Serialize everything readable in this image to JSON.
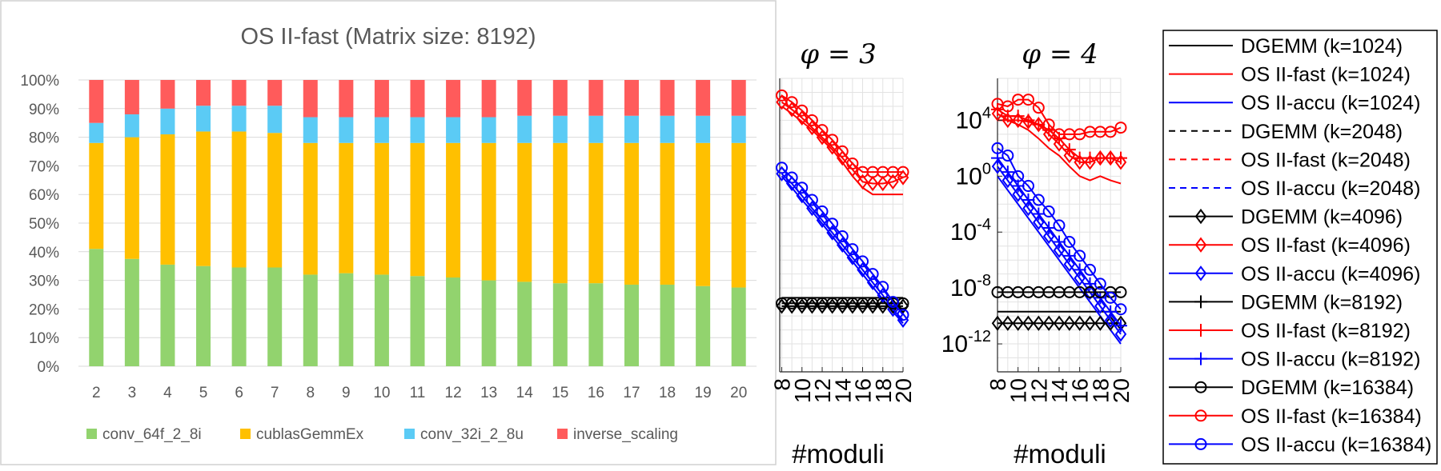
{
  "colors": {
    "conv64": "#92d36e",
    "cublas": "#ffc000",
    "conv32": "#5bcbf5",
    "inv": "#ff5b5b",
    "dgemm": "#000000",
    "fast": "#ff0000",
    "accu": "#0000ff"
  },
  "chart_data": [
    {
      "type": "bar",
      "stacked": true,
      "percent": true,
      "title": "OS II-fast (Matrix size: 8192)",
      "categories": [
        "2",
        "3",
        "4",
        "5",
        "6",
        "7",
        "8",
        "9",
        "10",
        "11",
        "12",
        "13",
        "14",
        "15",
        "16",
        "17",
        "18",
        "19",
        "20"
      ],
      "yticks": [
        "0%",
        "10%",
        "20%",
        "30%",
        "40%",
        "50%",
        "60%",
        "70%",
        "80%",
        "90%",
        "100%"
      ],
      "ylim": [
        0,
        100
      ],
      "legend_position": "bottom",
      "series": [
        {
          "name": "conv_64f_2_8i",
          "color": "#92d36e",
          "values": [
            41,
            37.5,
            35.5,
            35,
            34.5,
            34.5,
            32,
            32.5,
            32,
            31.5,
            31,
            30,
            29.5,
            29,
            29,
            28.5,
            28.5,
            28,
            27.5
          ]
        },
        {
          "name": "cublasGemmEx",
          "color": "#ffc000",
          "values": [
            37,
            42.5,
            45.5,
            47,
            47.5,
            47,
            46,
            45.5,
            46,
            46.5,
            47,
            48,
            48.5,
            49,
            49,
            49.5,
            49.5,
            50,
            50.5
          ]
        },
        {
          "name": "conv_32i_2_8u",
          "color": "#5bcbf5",
          "values": [
            7,
            8,
            9,
            9,
            9,
            9.5,
            9,
            9,
            9,
            9,
            9,
            9,
            9.5,
            9.5,
            9.5,
            9.5,
            9.5,
            9.5,
            9.5
          ]
        },
        {
          "name": "inverse_scaling",
          "color": "#ff5b5b",
          "values": [
            15,
            12,
            10,
            9,
            9,
            9,
            13,
            13,
            13,
            13,
            13,
            13,
            12.5,
            12.5,
            12.5,
            12.5,
            12.5,
            12.5,
            12.5
          ]
        }
      ]
    },
    {
      "type": "line",
      "title": "φ = 3",
      "xlabel": "#moduli",
      "x": [
        8,
        9,
        10,
        11,
        12,
        13,
        14,
        15,
        16,
        17,
        18,
        19,
        20
      ],
      "xticks": [
        "8",
        "10",
        "12",
        "14",
        "16",
        "18",
        "20"
      ],
      "xlim": [
        7.8,
        20
      ],
      "yscale": "log",
      "ylim": [
        1e-14,
        10000000.0
      ],
      "grid": true,
      "series": [
        {
          "name": "DGEMM (k=1024)",
          "color": "#000000",
          "marker": "none",
          "values": [
            2e-09,
            2e-09,
            2e-09,
            2e-09,
            2e-09,
            2e-09,
            2e-09,
            2e-09,
            2e-09,
            2e-09,
            2e-09,
            2e-09,
            2e-09
          ]
        },
        {
          "name": "OS II-fast (k=1024)",
          "color": "#ff0000",
          "marker": "none",
          "values": [
            100000,
            30000,
            8000,
            2000,
            400,
            80,
            10,
            1,
            0.15,
            0.05,
            0.05,
            0.05,
            0.05
          ]
        },
        {
          "name": "OS II-accu (k=1024)",
          "color": "#0000ff",
          "marker": "none",
          "values": [
            1,
            0.15,
            0.02,
            0.003,
            0.0004,
            5e-05,
            6e-06,
            8e-07,
            1e-07,
            1.2e-08,
            1.5e-09,
            2e-10,
            3e-11
          ]
        },
        {
          "name": "DGEMM (k=4096)",
          "color": "#000000",
          "marker": "diamond",
          "values": [
            5e-10,
            5e-10,
            5e-10,
            5e-10,
            5e-10,
            5e-10,
            5e-10,
            5e-10,
            5e-10,
            5e-10,
            5e-10,
            5e-10,
            5e-10
          ]
        },
        {
          "name": "OS II-fast (k=4096)",
          "color": "#ff0000",
          "marker": "diamond",
          "values": [
            200000,
            60000,
            15000,
            3000,
            600,
            120,
            20,
            3,
            0.4,
            0.3,
            0.3,
            0.4,
            0.8
          ]
        },
        {
          "name": "OS II-accu (k=4096)",
          "color": "#0000ff",
          "marker": "diamond",
          "values": [
            1.5,
            0.3,
            0.04,
            0.005,
            0.0007,
            9e-05,
            1.2e-05,
            1.5e-06,
            2e-07,
            2.5e-08,
            3e-09,
            3e-10,
            5e-11
          ]
        },
        {
          "name": "DGEMM (k=16384)",
          "color": "#000000",
          "marker": "circle",
          "values": [
            8e-10,
            8e-10,
            8e-10,
            8e-10,
            8e-10,
            8e-10,
            8e-10,
            8e-10,
            8e-10,
            8e-10,
            8e-10,
            8e-10,
            8e-10
          ]
        },
        {
          "name": "OS II-fast (k=16384)",
          "color": "#ff0000",
          "marker": "circle",
          "values": [
            600000,
            200000,
            50000,
            10000,
            2000,
            400,
            60,
            8,
            2,
            2,
            2,
            2,
            2
          ]
        },
        {
          "name": "OS II-accu (k=16384)",
          "color": "#0000ff",
          "marker": "circle",
          "values": [
            4,
            0.8,
            0.15,
            0.02,
            0.003,
            0.0004,
            5e-05,
            6e-06,
            8e-07,
            1e-07,
            1.2e-08,
            1e-09,
            1.2e-10
          ]
        }
      ]
    },
    {
      "type": "line",
      "title": "φ = 4",
      "xlabel": "#moduli",
      "x": [
        8,
        9,
        10,
        11,
        12,
        13,
        14,
        15,
        16,
        17,
        18,
        19,
        20
      ],
      "xticks": [
        "8",
        "10",
        "12",
        "14",
        "16",
        "18",
        "20"
      ],
      "xlim": [
        8,
        20
      ],
      "yscale": "log",
      "yticks": [
        "10^{4}",
        "10^{0}",
        "10^{-4}",
        "10^{-8}",
        "10^{-12}"
      ],
      "ylim": [
        1e-14,
        10000000.0
      ],
      "grid": true,
      "series": [
        {
          "name": "DGEMM (k=1024)",
          "color": "#000000",
          "marker": "none",
          "values": [
            2e-10,
            2e-10,
            2e-10,
            2e-10,
            2e-10,
            2e-10,
            2e-10,
            2e-10,
            2e-10,
            2e-10,
            2e-10,
            2e-10,
            2e-10
          ]
        },
        {
          "name": "OS II-fast (k=1024)",
          "color": "#ff0000",
          "marker": "none",
          "values": [
            10000,
            10000,
            5000,
            2000,
            500,
            100,
            30,
            5,
            1,
            0.5,
            1,
            0.5,
            0.3
          ]
        },
        {
          "name": "OS II-accu (k=1024)",
          "color": "#0000ff",
          "marker": "none",
          "values": [
            1,
            0.1,
            0.01,
            0.001,
            0.0001,
            1e-05,
            1e-06,
            1e-07,
            1e-08,
            1e-09,
            1e-10,
            1e-11,
            1e-12
          ]
        },
        {
          "name": "DGEMM (k=4096)",
          "color": "#000000",
          "marker": "diamond",
          "values": [
            3e-11,
            3e-11,
            3e-11,
            3e-11,
            3e-11,
            3e-11,
            3e-11,
            3e-11,
            3e-11,
            3e-11,
            3e-11,
            3e-11,
            3e-11
          ]
        },
        {
          "name": "OS II-fast (k=4096)",
          "color": "#ff0000",
          "marker": "diamond",
          "values": [
            30000,
            10000,
            10000,
            8000,
            5000,
            1000,
            200,
            30,
            10,
            10,
            20,
            20,
            10
          ]
        },
        {
          "name": "OS II-accu (k=4096)",
          "color": "#0000ff",
          "marker": "diamond",
          "values": [
            5,
            0.5,
            0.05,
            0.005,
            0.0005,
            5e-05,
            5e-06,
            5e-07,
            5e-08,
            5e-09,
            5e-10,
            5e-11,
            5e-12
          ]
        },
        {
          "name": "OS II-fast (k=8192)",
          "color": "#ff0000",
          "marker": "plus",
          "values": [
            60000,
            20000,
            20000,
            10000,
            5000,
            2000,
            500,
            80,
            20,
            20,
            20,
            20,
            20
          ]
        },
        {
          "name": "OS II-accu (k=8192)",
          "color": "#0000ff",
          "marker": "plus",
          "values": [
            20,
            2,
            0.2,
            0.02,
            0.002,
            0.0002,
            2e-05,
            2e-06,
            2e-07,
            2e-08,
            2e-09,
            2e-10,
            2e-11
          ]
        },
        {
          "name": "DGEMM (k=16384)",
          "color": "#000000",
          "marker": "circle",
          "values": [
            5e-09,
            5e-09,
            5e-09,
            5e-09,
            5e-09,
            5e-09,
            5e-09,
            5e-09,
            5e-09,
            5e-09,
            5e-09,
            5e-09,
            5e-09
          ]
        },
        {
          "name": "OS II-fast (k=16384)",
          "color": "#ff0000",
          "marker": "circle",
          "values": [
            150000,
            100000,
            300000,
            300000,
            80000,
            5000,
            1000,
            1000,
            1000,
            1500,
            1500,
            1500,
            3000
          ]
        },
        {
          "name": "OS II-accu (k=16384)",
          "color": "#0000ff",
          "marker": "circle",
          "values": [
            100,
            30,
            1,
            0.2,
            0.02,
            0.003,
            0.0003,
            2e-05,
            2e-06,
            2e-07,
            2e-08,
            2e-09,
            3e-10
          ]
        }
      ]
    }
  ],
  "legend": {
    "entries": [
      {
        "label": "DGEMM (k=1024)",
        "color": "#000000",
        "dash": false,
        "marker": "none"
      },
      {
        "label": "OS II-fast (k=1024)",
        "color": "#ff0000",
        "dash": false,
        "marker": "none"
      },
      {
        "label": "OS II-accu (k=1024)",
        "color": "#0000ff",
        "dash": false,
        "marker": "none"
      },
      {
        "label": "DGEMM (k=2048)",
        "color": "#000000",
        "dash": true,
        "marker": "none"
      },
      {
        "label": "OS II-fast (k=2048)",
        "color": "#ff0000",
        "dash": true,
        "marker": "none"
      },
      {
        "label": "OS II-accu (k=2048)",
        "color": "#0000ff",
        "dash": true,
        "marker": "none"
      },
      {
        "label": "DGEMM (k=4096)",
        "color": "#000000",
        "dash": false,
        "marker": "diamond"
      },
      {
        "label": "OS II-fast (k=4096)",
        "color": "#ff0000",
        "dash": false,
        "marker": "diamond"
      },
      {
        "label": "OS II-accu (k=4096)",
        "color": "#0000ff",
        "dash": false,
        "marker": "diamond"
      },
      {
        "label": "DGEMM (k=8192)",
        "color": "#000000",
        "dash": false,
        "marker": "plus"
      },
      {
        "label": "OS II-fast (k=8192)",
        "color": "#ff0000",
        "dash": false,
        "marker": "plus"
      },
      {
        "label": "OS II-accu (k=8192)",
        "color": "#0000ff",
        "dash": false,
        "marker": "plus"
      },
      {
        "label": "DGEMM (k=16384)",
        "color": "#000000",
        "dash": false,
        "marker": "circle"
      },
      {
        "label": "OS II-fast (k=16384)",
        "color": "#ff0000",
        "dash": false,
        "marker": "circle"
      },
      {
        "label": "OS II-accu (k=16384)",
        "color": "#0000ff",
        "dash": false,
        "marker": "circle"
      }
    ]
  }
}
